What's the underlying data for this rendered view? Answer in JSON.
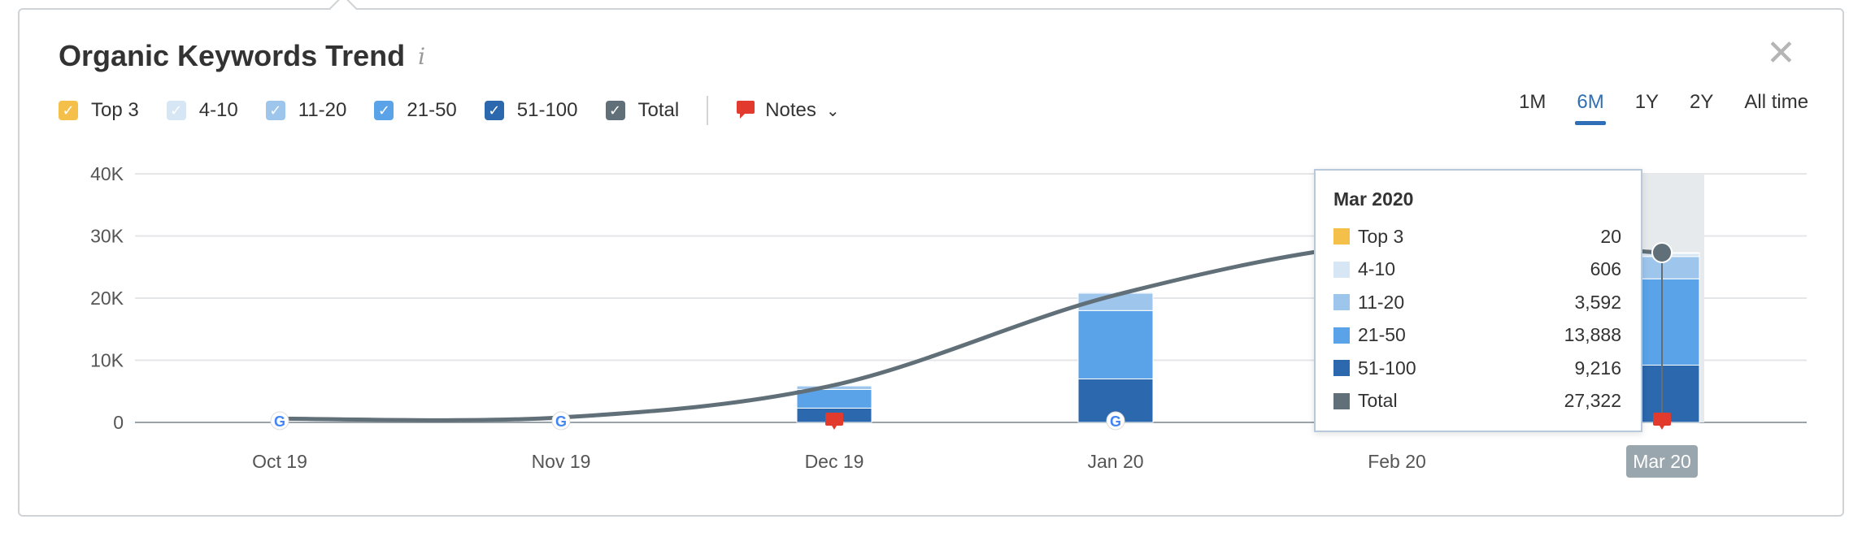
{
  "widget": {
    "title": "Organic Keywords Trend",
    "info_icon": "info-icon",
    "close_icon": "close-icon"
  },
  "legend": [
    {
      "label": "Top 3",
      "color": "#f5c04a"
    },
    {
      "label": "4-10",
      "color": "#d7e6f5"
    },
    {
      "label": "11-20",
      "color": "#9ec5ec"
    },
    {
      "label": "21-50",
      "color": "#5aa3e8"
    },
    {
      "label": "51-100",
      "color": "#2c68ad"
    },
    {
      "label": "Total",
      "color": "#616f78"
    }
  ],
  "notes": {
    "label": "Notes",
    "icon": "speech-bubble-icon",
    "color": "#e33a2e"
  },
  "ranges": [
    {
      "label": "1M",
      "active": false
    },
    {
      "label": "6M",
      "active": true
    },
    {
      "label": "1Y",
      "active": false
    },
    {
      "label": "2Y",
      "active": false
    },
    {
      "label": "All time",
      "active": false
    }
  ],
  "tooltip": {
    "title": "Mar 2020",
    "rows": [
      {
        "label": "Top 3",
        "value": "20",
        "color": "#f5c04a"
      },
      {
        "label": "4-10",
        "value": "606",
        "color": "#d7e6f5"
      },
      {
        "label": "11-20",
        "value": "3,592",
        "color": "#9ec5ec"
      },
      {
        "label": "21-50",
        "value": "13,888",
        "color": "#5aa3e8"
      },
      {
        "label": "51-100",
        "value": "9,216",
        "color": "#2c68ad"
      },
      {
        "label": "Total",
        "value": "27,322",
        "color": "#616f78"
      }
    ]
  },
  "chart_data": {
    "type": "bar",
    "categories": [
      "Oct 19",
      "Nov 19",
      "Dec 19",
      "Jan 20",
      "Feb 20",
      "Mar 20"
    ],
    "highlighted_category": "Mar 20",
    "y_ticks": [
      "0",
      "10K",
      "20K",
      "30K",
      "40K"
    ],
    "ylim": [
      0,
      40000
    ],
    "grid": true,
    "series": [
      {
        "name": "Top 3",
        "values": [
          0,
          0,
          0,
          0,
          0,
          20
        ]
      },
      {
        "name": "4-10",
        "values": [
          0,
          0,
          100,
          200,
          0,
          606
        ]
      },
      {
        "name": "11-20",
        "values": [
          0,
          0,
          600,
          2800,
          0,
          3592
        ]
      },
      {
        "name": "21-50",
        "values": [
          0,
          0,
          3000,
          11000,
          0,
          13888
        ]
      },
      {
        "name": "51-100",
        "values": [
          0,
          0,
          2300,
          7000,
          0,
          9216
        ]
      }
    ],
    "total_line": {
      "name": "Total",
      "values": [
        600,
        800,
        6000,
        20500,
        29000,
        27322
      ]
    },
    "markers": [
      {
        "category": "Oct 19",
        "type": "google-update-icon"
      },
      {
        "category": "Nov 19",
        "type": "google-update-icon"
      },
      {
        "category": "Dec 19",
        "type": "note-icon"
      },
      {
        "category": "Jan 20",
        "type": "google-update-icon"
      },
      {
        "category": "Mar 20",
        "type": "note-icon"
      }
    ]
  }
}
